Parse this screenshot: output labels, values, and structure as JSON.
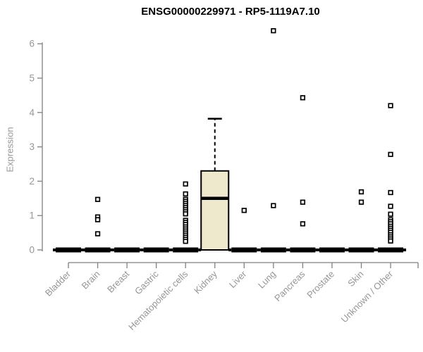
{
  "chart_data": {
    "type": "box",
    "title": "ENSG00000229971 - RP5-1119A7.10",
    "xlabel": "",
    "ylabel": "Expression",
    "ylim": [
      0,
      6.5
    ],
    "yticks": [
      0,
      1,
      2,
      3,
      4,
      5,
      6
    ],
    "grid": false,
    "legend": null,
    "marker": "open-square",
    "colors": {
      "box_fill": "#EEE8CD",
      "box_stroke": "#000000",
      "bar": "#000000",
      "axis_line": "#808080",
      "tick_text": "#969696",
      "title_text": "#000000",
      "background": "#ffffff"
    },
    "categories": [
      "Bladder",
      "Brain",
      "Breast",
      "Gastric",
      "Hematopoietic cells",
      "Kidney",
      "Liver",
      "Lung",
      "Pancreas",
      "Prostate",
      "Skin",
      "Unknown / Other"
    ],
    "boxes": [
      {
        "category": "Bladder",
        "q1": 0,
        "median": 0,
        "q3": 0,
        "whisker_low": 0,
        "whisker_high": 0,
        "outliers": []
      },
      {
        "category": "Brain",
        "q1": 0,
        "median": 0,
        "q3": 0,
        "whisker_low": 0,
        "whisker_high": 0,
        "outliers": [
          1.47,
          0.96,
          0.88,
          0.47
        ]
      },
      {
        "category": "Breast",
        "q1": 0,
        "median": 0,
        "q3": 0,
        "whisker_low": 0,
        "whisker_high": 0,
        "outliers": []
      },
      {
        "category": "Gastric",
        "q1": 0,
        "median": 0,
        "q3": 0,
        "whisker_low": 0,
        "whisker_high": 0,
        "outliers": []
      },
      {
        "category": "Hematopoietic cells",
        "q1": 0,
        "median": 0,
        "q3": 0,
        "whisker_low": 0,
        "whisker_high": 0,
        "outliers": [
          1.92,
          1.63,
          1.47,
          1.41,
          1.35,
          1.29,
          1.23,
          1.17,
          1.11,
          1.05,
          0.86,
          0.8,
          0.74,
          0.67,
          0.61,
          0.55,
          0.49,
          0.43,
          0.37,
          0.31,
          0.25
        ]
      },
      {
        "category": "Kidney",
        "q1": 0,
        "median": 1.5,
        "q3": 2.3,
        "whisker_low": 0,
        "whisker_high": 3.82,
        "outliers": []
      },
      {
        "category": "Liver",
        "q1": 0,
        "median": 0,
        "q3": 0,
        "whisker_low": 0,
        "whisker_high": 0,
        "outliers": [
          1.15
        ]
      },
      {
        "category": "Lung",
        "q1": 0,
        "median": 0,
        "q3": 0,
        "whisker_low": 0,
        "whisker_high": 0,
        "outliers": [
          6.38,
          1.29
        ]
      },
      {
        "category": "Pancreas",
        "q1": 0,
        "median": 0,
        "q3": 0,
        "whisker_low": 0,
        "whisker_high": 0,
        "outliers": [
          4.43,
          1.39,
          0.76
        ]
      },
      {
        "category": "Prostate",
        "q1": 0,
        "median": 0,
        "q3": 0,
        "whisker_low": 0,
        "whisker_high": 0,
        "outliers": []
      },
      {
        "category": "Skin",
        "q1": 0,
        "median": 0,
        "q3": 0,
        "whisker_low": 0,
        "whisker_high": 0,
        "outliers": [
          1.69,
          1.39
        ]
      },
      {
        "category": "Unknown / Other",
        "q1": 0,
        "median": 0,
        "q3": 0,
        "whisker_low": 0,
        "whisker_high": 0,
        "outliers": [
          4.2,
          2.78,
          1.67,
          1.27,
          1.04,
          0.88,
          0.82,
          0.76,
          0.69,
          0.63,
          0.57,
          0.51,
          0.44,
          0.38,
          0.32,
          0.26
        ]
      }
    ]
  }
}
